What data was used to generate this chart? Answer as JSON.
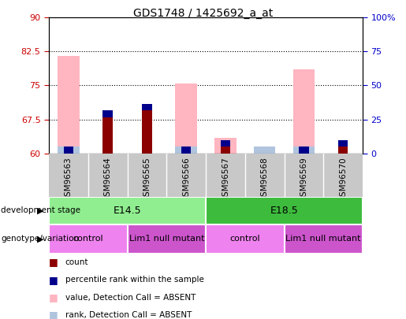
{
  "title": "GDS1748 / 1425692_a_at",
  "samples": [
    "GSM96563",
    "GSM96564",
    "GSM96565",
    "GSM96566",
    "GSM96567",
    "GSM96568",
    "GSM96569",
    "GSM96570"
  ],
  "ymin": 60,
  "ymax": 90,
  "yticks_left": [
    60,
    67.5,
    75,
    82.5,
    90
  ],
  "yticks_right": [
    0,
    25,
    50,
    75,
    100
  ],
  "ytick_right_labels": [
    "0",
    "25",
    "50",
    "75",
    "100%"
  ],
  "grid_lines": [
    67.5,
    75,
    82.5
  ],
  "bar_base": 60,
  "count_heights": [
    0,
    8.0,
    9.5,
    0,
    1.5,
    0,
    0,
    1.5
  ],
  "percentile_heights": [
    1.5,
    1.5,
    1.5,
    1.5,
    1.5,
    0,
    1.5,
    1.5
  ],
  "value_absent_heights": [
    21.5,
    0,
    0,
    15.5,
    3.5,
    1.5,
    18.5,
    0
  ],
  "rank_absent_heights": [
    1.5,
    0,
    0,
    1.5,
    0,
    1.5,
    1.5,
    0
  ],
  "dev_stage_groups": [
    {
      "label": "E14.5",
      "start": 0,
      "end": 3,
      "color": "#90ee90"
    },
    {
      "label": "E18.5",
      "start": 4,
      "end": 7,
      "color": "#3dbb3d"
    }
  ],
  "genotype_groups": [
    {
      "label": "control",
      "start": 0,
      "end": 1,
      "color": "#ee82ee"
    },
    {
      "label": "Lim1 null mutant",
      "start": 2,
      "end": 3,
      "color": "#cc55cc"
    },
    {
      "label": "control",
      "start": 4,
      "end": 5,
      "color": "#ee82ee"
    },
    {
      "label": "Lim1 null mutant",
      "start": 6,
      "end": 7,
      "color": "#cc55cc"
    }
  ],
  "count_color": "#8b0000",
  "percentile_color": "#00008b",
  "value_absent_color": "#ffb6c1",
  "rank_absent_color": "#b0c4de",
  "left_axis_color": "#cc0000",
  "right_axis_color": "#0000cc",
  "tick_bg_color": "#c8c8c8",
  "plot_bg_color": "#ffffff",
  "legend_items": [
    {
      "color": "#8b0000",
      "label": "count"
    },
    {
      "color": "#00008b",
      "label": "percentile rank within the sample"
    },
    {
      "color": "#ffb6c1",
      "label": "value, Detection Call = ABSENT"
    },
    {
      "color": "#b0c4de",
      "label": "rank, Detection Call = ABSENT"
    }
  ]
}
